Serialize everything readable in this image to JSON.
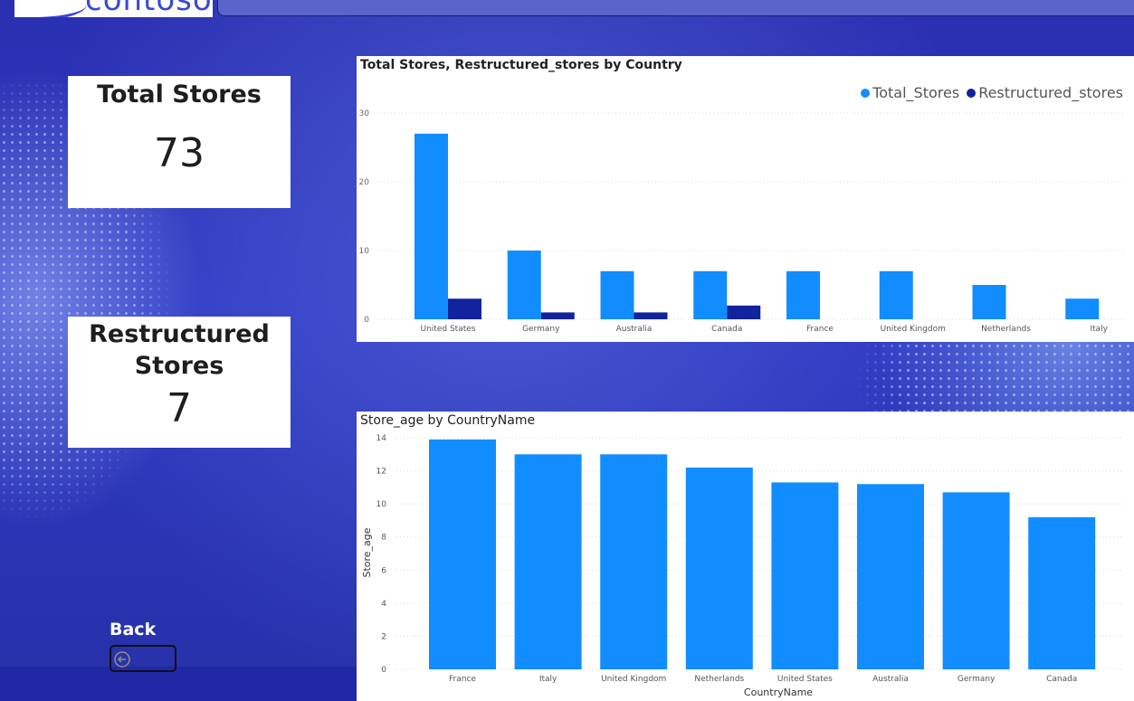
{
  "brand": {
    "logo_text": "contoso"
  },
  "cards": {
    "total": {
      "title": "Total Stores",
      "value": "73"
    },
    "restructured": {
      "title": "Restructured Stores",
      "value": "7"
    }
  },
  "nav": {
    "back_label": "Back",
    "back_icon": "back-arrow-icon"
  },
  "colors": {
    "total": "#118dff",
    "restructured": "#12239e",
    "grid": "#d9d9d9"
  },
  "chart_data": [
    {
      "type": "bar",
      "title": "Total Stores, Restructured_stores by Country",
      "categories": [
        "United States",
        "Germany",
        "Australia",
        "Canada",
        "France",
        "United Kingdom",
        "Netherlands",
        "Italy"
      ],
      "series": [
        {
          "name": "Total_Stores",
          "values": [
            27,
            10,
            7,
            7,
            7,
            7,
            5,
            3
          ]
        },
        {
          "name": "Restructured_stores",
          "values": [
            3,
            1,
            1,
            2,
            0,
            0,
            0,
            0
          ]
        }
      ],
      "ylim": [
        0,
        30
      ],
      "yticks": [
        0,
        10,
        20,
        30
      ],
      "legend": "top-right",
      "grid": true
    },
    {
      "type": "bar",
      "title": "Store_age by CountryName",
      "categories": [
        "France",
        "Italy",
        "United Kingdom",
        "Netherlands",
        "United States",
        "Australia",
        "Germany",
        "Canada"
      ],
      "values": [
        13.9,
        13.0,
        13.0,
        12.2,
        11.3,
        11.2,
        10.7,
        9.2
      ],
      "xlabel": "CountryName",
      "ylabel": "Store_age",
      "ylim": [
        0,
        14
      ],
      "yticks": [
        0,
        2,
        4,
        6,
        8,
        10,
        12,
        14
      ],
      "grid": true
    }
  ]
}
